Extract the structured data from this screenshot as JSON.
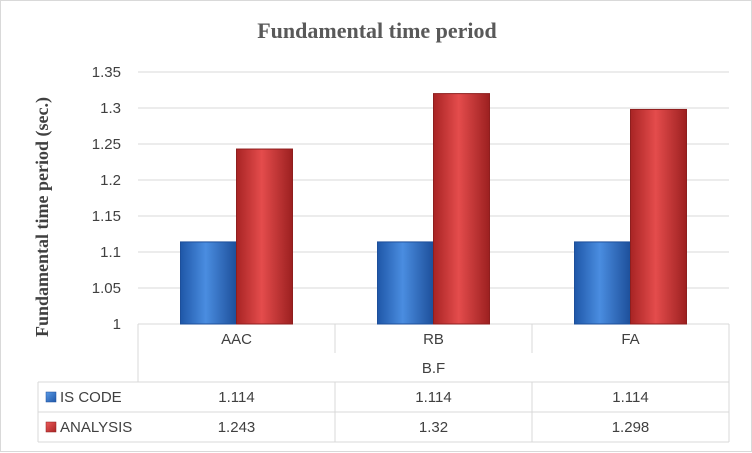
{
  "chart_data": {
    "type": "bar",
    "title": "Fundamental time period",
    "ylabel": "Fundamental time period (sec.)",
    "xlabel": "B.F",
    "categories": [
      "AAC",
      "RB",
      "FA"
    ],
    "ylim": [
      1,
      1.35
    ],
    "yticks": [
      "1",
      "1.05",
      "1.1",
      "1.15",
      "1.2",
      "1.25",
      "1.3",
      "1.35"
    ],
    "grid": true,
    "legend": "data-table",
    "series": [
      {
        "name": "IS CODE",
        "values": [
          1.114,
          1.114,
          1.114
        ],
        "labels": [
          "1.114",
          "1.114",
          "1.114"
        ],
        "color": "#2e6fc6"
      },
      {
        "name": "ANALYSIS",
        "values": [
          1.243,
          1.32,
          1.298
        ],
        "labels": [
          "1.243",
          "1.32",
          "1.298"
        ],
        "color": "#cf3434"
      }
    ]
  }
}
